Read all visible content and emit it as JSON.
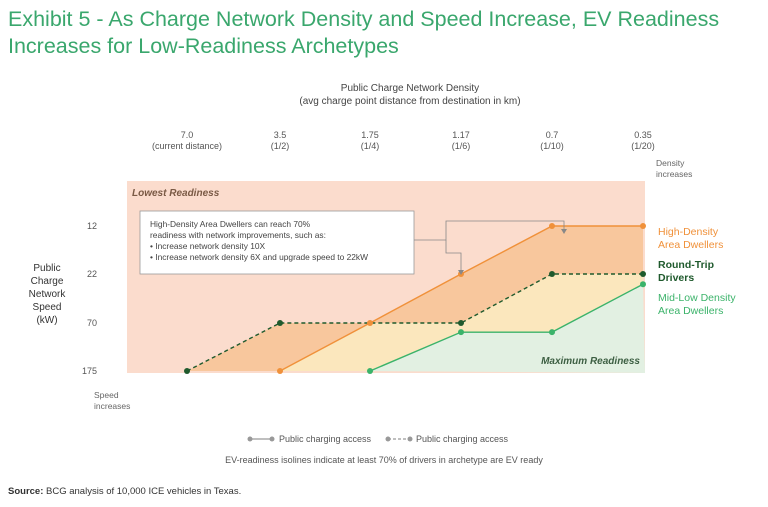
{
  "header": {
    "title": "Exhibit 5 - As Charge Network Density and Speed Increase, EV Readiness Increases for Low-Readiness Archetypes"
  },
  "chart_data": {
    "type": "line",
    "top_axis": {
      "title_line1": "Public Charge Network Density",
      "title_line2": "(avg charge point distance from destination in km)",
      "ticks": [
        {
          "value": "7.0",
          "sub": "(current distance)"
        },
        {
          "value": "3.5",
          "sub": "(1/2)"
        },
        {
          "value": "1.75",
          "sub": "(1/4)"
        },
        {
          "value": "1.17",
          "sub": "(1/6)"
        },
        {
          "value": "0.7",
          "sub": "(1/10)"
        },
        {
          "value": "0.35",
          "sub": "(1/20)"
        }
      ],
      "end_label": "Density increases"
    },
    "left_axis": {
      "title_lines": [
        "Public",
        "Charge",
        "Network",
        "Speed",
        "(kW)"
      ],
      "ticks": [
        "12",
        "22",
        "70",
        "175"
      ],
      "end_label": "Speed increases"
    },
    "region_labels": {
      "lowest": "Lowest Readiness",
      "maximum": "Maximum Readiness"
    },
    "series": [
      {
        "name": "High-Density Area Dwellers",
        "style": "solid",
        "color": "#f0913a",
        "points": [
          [
            3.5,
            175
          ],
          [
            1.75,
            70
          ],
          [
            1.17,
            22
          ],
          [
            0.7,
            12
          ],
          [
            0.35,
            12
          ]
        ]
      },
      {
        "name": "Round-Trip Drivers",
        "style": "dashed",
        "color": "#1f5a2d",
        "points": [
          [
            7.0,
            175
          ],
          [
            3.5,
            70
          ],
          [
            1.17,
            70
          ],
          [
            0.7,
            22
          ],
          [
            0.35,
            22
          ]
        ]
      },
      {
        "name": "Mid-Low Density Area Dwellers",
        "style": "solid",
        "color": "#3bb36a",
        "points": [
          [
            1.75,
            175
          ],
          [
            1.17,
            90
          ],
          [
            0.7,
            90
          ],
          [
            0.35,
            32
          ]
        ]
      }
    ],
    "series_labels": [
      {
        "lines": [
          "High-Density",
          "Area Dwellers"
        ],
        "color": "#f0913a"
      },
      {
        "lines": [
          "Round-Trip",
          "Drivers"
        ],
        "color": "#1f5a2d"
      },
      {
        "lines": [
          "Mid-Low Density",
          "Area Dwellers"
        ],
        "color": "#3bb36a"
      }
    ],
    "annotation": {
      "line1": "High-Density Area Dwellers can reach 70%",
      "line2": "readiness with network improvements, such as:",
      "bullet1": "Increase network density 10X",
      "bullet2": "Increase network density 6X and upgrade speed to 22kW"
    },
    "legend": {
      "solid": "Public charging access",
      "dashed": "Public charging access"
    },
    "footnote": "EV-readiness isolines indicate at least 70% of drivers in archetype are EV ready",
    "colors": {
      "lowest_bg": "#fbdccd",
      "orange_fill": "#f8c79d",
      "yellow_fill": "#fbe7bd",
      "green_fill": "#e2f0e2"
    }
  },
  "source": {
    "label": "Source:",
    "text": "BCG analysis of 10,000 ICE vehicles in Texas."
  }
}
